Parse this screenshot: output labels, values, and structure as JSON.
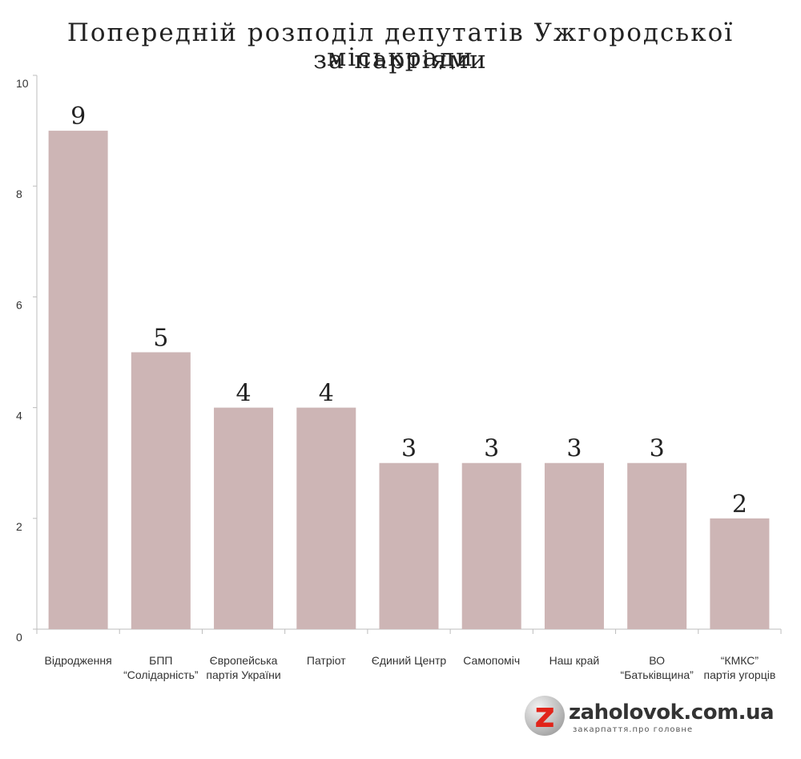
{
  "title_line1": "Попередній розподіл депутатів Ужгородської міськради",
  "title_line2": "за партіями",
  "logo": {
    "letter": "z",
    "site": "zaholovok.com.ua",
    "tagline": "закарпаття.про головне",
    "letter_color": "#e1241a"
  },
  "chart_data": {
    "type": "bar",
    "title": "Попередній розподіл депутатів Ужгородської міськради за партіями",
    "categories": [
      [
        "Відродження"
      ],
      [
        "БПП",
        "“Солідарність”"
      ],
      [
        "Європейська",
        "партія України"
      ],
      [
        "Патріот"
      ],
      [
        "Єдиний Центр"
      ],
      [
        "Самопоміч"
      ],
      [
        "Наш край"
      ],
      [
        "ВО",
        "“Батьківщина”"
      ],
      [
        "“КМКС”",
        "партія угорців"
      ]
    ],
    "values": [
      9,
      5,
      4,
      4,
      3,
      3,
      3,
      3,
      2
    ],
    "data_labels": [
      "9",
      "5",
      "4",
      "4",
      "3",
      "3",
      "3",
      "3",
      "2"
    ],
    "ylim": [
      0,
      10
    ],
    "yticks": [
      0,
      2,
      4,
      6,
      8,
      10
    ],
    "xlabel": "",
    "ylabel": "",
    "bar_color": "#cdb5b5",
    "grid": false,
    "legend": "none"
  }
}
